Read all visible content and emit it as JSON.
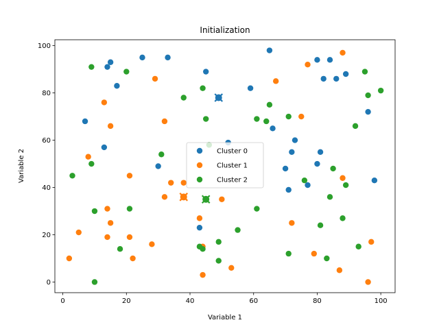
{
  "chart_data": {
    "type": "scatter",
    "title": "Initialization",
    "xlabel": "Variable 1",
    "ylabel": "Variable 2",
    "xlim": [
      -2.5,
      104.5
    ],
    "ylim": [
      -4.5,
      102.5
    ],
    "xticks": [
      0,
      20,
      40,
      60,
      80,
      100
    ],
    "yticks": [
      0,
      20,
      40,
      60,
      80,
      100
    ],
    "grid": false,
    "legend_position": "center",
    "series": [
      {
        "name": "Cluster 0",
        "color": "#1f77b4",
        "points": [
          [
            15,
            93
          ],
          [
            14,
            91
          ],
          [
            25,
            95
          ],
          [
            33,
            95
          ],
          [
            17,
            83
          ],
          [
            45,
            89
          ],
          [
            65,
            98
          ],
          [
            80,
            94
          ],
          [
            84,
            94
          ],
          [
            82,
            86
          ],
          [
            86,
            86
          ],
          [
            89,
            88
          ],
          [
            59,
            82
          ],
          [
            96,
            72
          ],
          [
            7,
            68
          ],
          [
            13,
            57
          ],
          [
            30,
            49
          ],
          [
            52,
            59
          ],
          [
            66,
            65
          ],
          [
            73,
            60
          ],
          [
            72,
            55
          ],
          [
            81,
            55
          ],
          [
            70,
            48
          ],
          [
            80,
            50
          ],
          [
            77,
            41
          ],
          [
            71,
            39
          ],
          [
            98,
            43
          ],
          [
            43,
            23
          ]
        ],
        "centroid": [
          49,
          78
        ]
      },
      {
        "name": "Cluster 1",
        "color": "#ff7f0e",
        "points": [
          [
            88,
            97
          ],
          [
            77,
            92
          ],
          [
            29,
            86
          ],
          [
            67,
            85
          ],
          [
            13,
            76
          ],
          [
            15,
            66
          ],
          [
            32,
            68
          ],
          [
            75,
            70
          ],
          [
            8,
            53
          ],
          [
            21,
            45
          ],
          [
            34,
            42
          ],
          [
            38,
            42
          ],
          [
            32,
            36
          ],
          [
            50,
            35
          ],
          [
            88,
            44
          ],
          [
            14,
            31
          ],
          [
            43,
            27
          ],
          [
            15,
            25
          ],
          [
            72,
            25
          ],
          [
            5,
            21
          ],
          [
            14,
            19
          ],
          [
            21,
            19
          ],
          [
            28,
            16
          ],
          [
            44,
            15
          ],
          [
            2,
            10
          ],
          [
            22,
            10
          ],
          [
            53,
            6
          ],
          [
            44,
            3
          ],
          [
            79,
            12
          ],
          [
            87,
            5
          ],
          [
            96,
            0
          ],
          [
            97,
            17
          ]
        ],
        "centroid": [
          38,
          36
        ]
      },
      {
        "name": "Cluster 2",
        "color": "#2ca02c",
        "points": [
          [
            9,
            91
          ],
          [
            20,
            89
          ],
          [
            44,
            82
          ],
          [
            38,
            78
          ],
          [
            95,
            89
          ],
          [
            100,
            81
          ],
          [
            96,
            79
          ],
          [
            65,
            75
          ],
          [
            45,
            69
          ],
          [
            61,
            69
          ],
          [
            64,
            68
          ],
          [
            71,
            70
          ],
          [
            92,
            66
          ],
          [
            46,
            58
          ],
          [
            31,
            54
          ],
          [
            9,
            50
          ],
          [
            3,
            45
          ],
          [
            85,
            48
          ],
          [
            76,
            43
          ],
          [
            89,
            41
          ],
          [
            84,
            36
          ],
          [
            10,
            30
          ],
          [
            21,
            31
          ],
          [
            61,
            31
          ],
          [
            88,
            27
          ],
          [
            81,
            24
          ],
          [
            55,
            22
          ],
          [
            18,
            14
          ],
          [
            43,
            15
          ],
          [
            44,
            14
          ],
          [
            49,
            17
          ],
          [
            71,
            12
          ],
          [
            83,
            10
          ],
          [
            93,
            15
          ],
          [
            49,
            9
          ],
          [
            10,
            0
          ]
        ],
        "centroid": [
          45,
          35
        ]
      }
    ]
  }
}
